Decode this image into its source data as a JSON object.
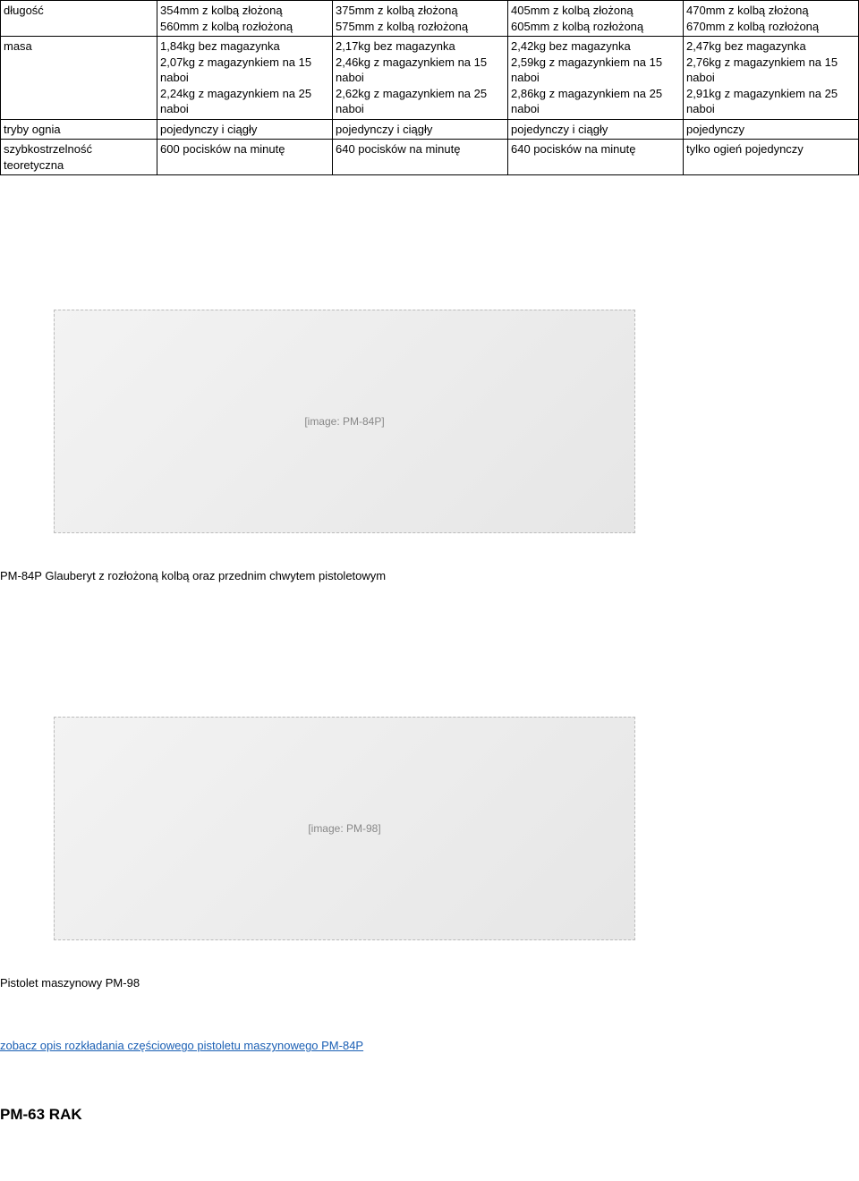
{
  "table": {
    "labels": {
      "dlugosc": "długość",
      "masa": "masa",
      "tryby": "tryby ognia",
      "szybk": "szybkostrzelność teoretyczna"
    },
    "rows": {
      "dlugosc": [
        "354mm z kolbą złożoną\n560mm z kolbą rozłożoną",
        "375mm z kolbą złożoną\n575mm z kolbą rozłożoną",
        "405mm z kolbą złożoną\n605mm z kolbą rozłożoną",
        "470mm z kolbą złożoną\n670mm z kolbą rozłożoną"
      ],
      "masa": [
        "1,84kg bez magazynka\n 2,07kg z magazynkiem na 15 naboi\n2,24kg z magazynkiem na 25 naboi",
        "2,17kg bez magazynka\n 2,46kg z magazynkiem na 15 naboi\n2,62kg z magazynkiem na 25 naboi",
        "2,42kg bez magazynka\n 2,59kg z magazynkiem na 15 naboi\n2,86kg z magazynkiem na 25 naboi",
        "2,47kg bez magazynka\n2,76kg z magazynkiem na 15 naboi\n2,91kg z magazynkiem na 25 naboi"
      ],
      "tryby": [
        "pojedynczy i ciągły",
        "pojedynczy i ciągły",
        "pojedynczy i ciągły",
        "pojedynczy"
      ],
      "szybk": [
        "600 pocisków na minutę",
        "640 pocisków na minutę",
        "640 pocisków na minutę",
        "tylko ogień pojedynczy"
      ]
    }
  },
  "figure1": {
    "placeholder": "[image: PM-84P]",
    "caption": "PM-84P Glauberyt z rozłożoną kolbą oraz przednim chwytem pistoletowym"
  },
  "figure2": {
    "placeholder": "[image: PM-98]",
    "caption": "Pistolet maszynowy PM-98"
  },
  "link": {
    "text": "zobacz opis rozkładania częściowego pistoletu maszynowego PM-84P"
  },
  "heading": "PM-63 RAK"
}
